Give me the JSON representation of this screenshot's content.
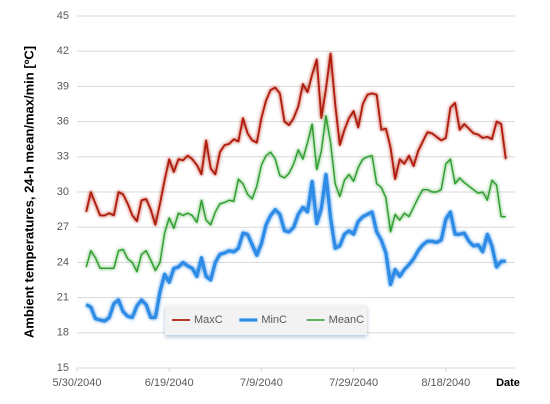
{
  "chart_data": {
    "type": "line",
    "y_label": "Ambient temperatures, 24-h mean/max/min [ºC]",
    "x_label": "Date",
    "x": [
      "6/1/2040",
      "6/2/2040",
      "6/3/2040",
      "6/4/2040",
      "6/5/2040",
      "6/6/2040",
      "6/7/2040",
      "6/8/2040",
      "6/9/2040",
      "6/10/2040",
      "6/11/2040",
      "6/12/2040",
      "6/13/2040",
      "6/14/2040",
      "6/15/2040",
      "6/16/2040",
      "6/17/2040",
      "6/18/2040",
      "6/19/2040",
      "6/20/2040",
      "6/21/2040",
      "6/22/2040",
      "6/23/2040",
      "6/24/2040",
      "6/25/2040",
      "6/26/2040",
      "6/27/2040",
      "6/28/2040",
      "6/29/2040",
      "6/30/2040",
      "7/1/2040",
      "7/2/2040",
      "7/3/2040",
      "7/4/2040",
      "7/5/2040",
      "7/6/2040",
      "7/7/2040",
      "7/8/2040",
      "7/9/2040",
      "7/10/2040",
      "7/11/2040",
      "7/12/2040",
      "7/13/2040",
      "7/14/2040",
      "7/15/2040",
      "7/16/2040",
      "7/17/2040",
      "7/18/2040",
      "7/19/2040",
      "7/20/2040",
      "7/21/2040",
      "7/22/2040",
      "7/23/2040",
      "7/24/2040",
      "7/25/2040",
      "7/26/2040",
      "7/27/2040",
      "7/28/2040",
      "7/29/2040",
      "7/30/2040",
      "7/31/2040",
      "8/1/2040",
      "8/2/2040",
      "8/3/2040",
      "8/4/2040",
      "8/5/2040",
      "8/6/2040",
      "8/7/2040",
      "8/8/2040",
      "8/9/2040",
      "8/10/2040",
      "8/11/2040",
      "8/12/2040",
      "8/13/2040",
      "8/14/2040",
      "8/15/2040",
      "8/16/2040",
      "8/17/2040",
      "8/18/2040",
      "8/19/2040",
      "8/20/2040",
      "8/21/2040",
      "8/22/2040",
      "8/23/2040",
      "8/24/2040",
      "8/25/2040",
      "8/26/2040",
      "8/27/2040",
      "8/28/2040",
      "8/29/2040",
      "8/30/2040",
      "8/31/2040"
    ],
    "series": [
      {
        "name": "MaxC",
        "color": "#b01c10",
        "width": 1.8,
        "values": [
          28.3,
          30,
          29,
          28,
          28,
          28.2,
          28,
          30,
          29.8,
          29,
          28,
          27.5,
          29.3,
          29.4,
          28.5,
          27.2,
          29,
          31,
          32.8,
          31.7,
          32.8,
          32.7,
          33.1,
          32.8,
          32.3,
          31.5,
          34.4,
          32,
          31.5,
          33.4,
          34,
          34.1,
          34.5,
          34.3,
          36.3,
          35,
          34.4,
          34.2,
          36.3,
          37.8,
          38.7,
          38.9,
          38.4,
          36,
          35.7,
          36.3,
          37.3,
          39.2,
          38.5,
          40,
          41.3,
          36.3,
          38.8,
          41.8,
          37.5,
          34,
          35.3,
          36.3,
          36.9,
          35.5,
          37.5,
          38.3,
          38.4,
          38.3,
          35.3,
          35.4,
          33.8,
          31.1,
          32.8,
          32.4,
          33.1,
          32.2,
          33.5,
          34.3,
          35.1,
          35,
          34.7,
          34.4,
          34.6,
          37.2,
          37.6,
          35.3,
          35.8,
          35.4,
          35,
          34.9,
          34.6,
          34.7,
          34.5,
          36,
          35.8,
          32.8
        ]
      },
      {
        "name": "MinC",
        "color": "#2e8be6",
        "width": 3.2,
        "values": [
          20.4,
          20.2,
          19.2,
          19.1,
          19,
          19.3,
          20.5,
          20.8,
          19.8,
          19.4,
          19.3,
          20.3,
          20.8,
          20.4,
          19.3,
          19.3,
          21.5,
          23,
          22.3,
          23.5,
          23.6,
          24,
          23.7,
          23.5,
          22.8,
          24.4,
          22.8,
          22.5,
          24,
          24.7,
          24.8,
          25,
          24.9,
          25.2,
          26.5,
          26.4,
          25.5,
          24.6,
          25.6,
          27.2,
          28,
          28.5,
          28.1,
          26.7,
          26.6,
          27,
          28.1,
          28.7,
          28.3,
          30.9,
          27.3,
          28.6,
          31.5,
          27.8,
          25.2,
          25.4,
          26.4,
          26.7,
          26.4,
          27.5,
          27.9,
          28.1,
          28.3,
          26.6,
          25.9,
          24.8,
          22.1,
          23.4,
          22.8,
          23.4,
          23.8,
          24.3,
          25,
          25.5,
          25.8,
          25.8,
          25.7,
          25.9,
          27.7,
          28.3,
          26.4,
          26.4,
          26.5,
          25.8,
          25.4,
          25.5,
          24.9,
          26.4,
          25.4,
          23.6,
          24.1,
          24.1
        ]
      },
      {
        "name": "MeanC",
        "color": "#2f9e2f",
        "width": 1.4,
        "values": [
          23.6,
          25,
          24.4,
          23.5,
          23.5,
          23.5,
          23.5,
          25,
          25.1,
          24.3,
          24,
          23.2,
          24.7,
          25,
          24.2,
          23.3,
          24,
          26.5,
          27.8,
          26.9,
          28.2,
          28,
          28.2,
          28,
          27.4,
          29.3,
          27.6,
          27.2,
          28.3,
          29,
          29.1,
          29.3,
          29.2,
          31.1,
          30.7,
          29.8,
          29.4,
          30.5,
          32.3,
          33.1,
          33.4,
          32.8,
          31.4,
          31.2,
          31.6,
          32.4,
          33.6,
          32.8,
          34.2,
          35.8,
          31.9,
          33.5,
          36.5,
          34.2,
          30.7,
          29.6,
          31,
          31.5,
          30.9,
          32.1,
          32.8,
          33,
          33.1,
          30.7,
          30.4,
          29.5,
          26.6,
          28.1,
          27.6,
          28.2,
          27.9,
          28.7,
          29.5,
          30.2,
          30.2,
          30,
          30,
          30.2,
          32.4,
          32.8,
          30.7,
          31.2,
          30.8,
          30.5,
          30.2,
          29.9,
          30,
          29.3,
          31,
          30.6,
          27.9,
          27.9
        ]
      }
    ],
    "xlim": [
      "5/30/2040",
      "9/2/2040"
    ],
    "xticks": [
      "5/30/2040",
      "6/19/2040",
      "7/9/2040",
      "7/29/2040",
      "8/18/2040"
    ],
    "ylim": [
      15,
      45
    ],
    "yticks": [
      15,
      18,
      21,
      24,
      27,
      30,
      33,
      36,
      39,
      42,
      45
    ],
    "grid": true,
    "legend": "bottom"
  }
}
